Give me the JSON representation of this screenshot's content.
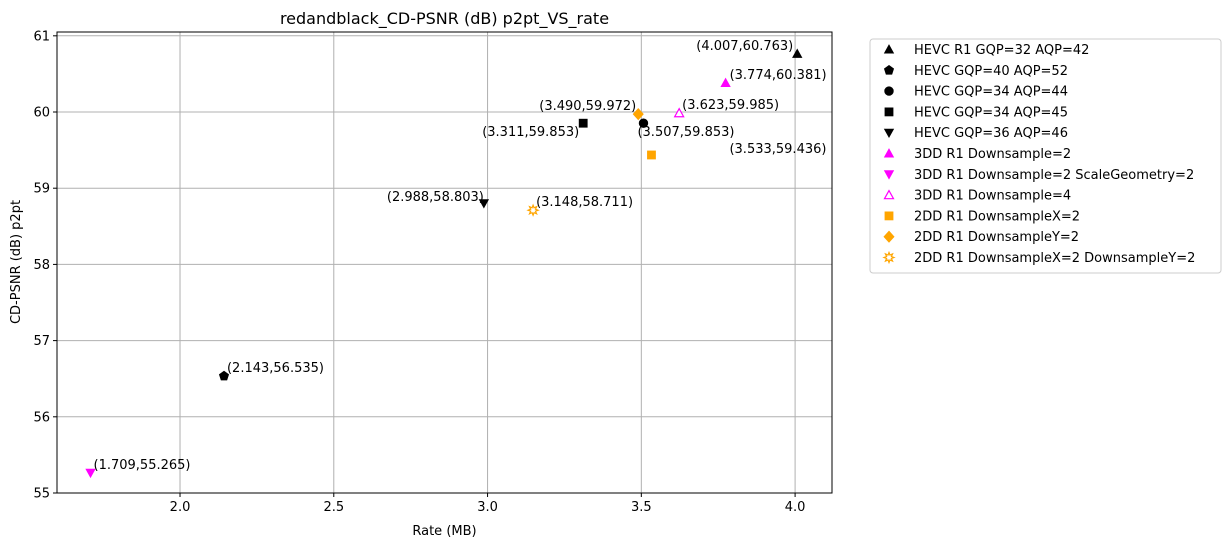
{
  "chart_data": {
    "type": "scatter",
    "title": "redandblack_CD-PSNR (dB) p2pt_VS_rate",
    "xlabel": "Rate (MB)",
    "ylabel": "CD-PSNR (dB) p2pt",
    "xlim": [
      1.6,
      4.12
    ],
    "ylim": [
      55.0,
      61.05
    ],
    "xticks": [
      "2.0",
      "2.5",
      "3.0",
      "3.5",
      "4.0"
    ],
    "yticks": [
      "55",
      "56",
      "57",
      "58",
      "59",
      "60",
      "61"
    ],
    "grid": true,
    "legend_position": "outside-right",
    "series": [
      {
        "name": "HEVC R1 GQP=32 AQP=42",
        "marker": "triangle-up",
        "color": "#000000",
        "filled": true,
        "points": [
          {
            "x": 4.007,
            "y": 60.763,
            "label": "(4.007,60.763)"
          }
        ]
      },
      {
        "name": "HEVC GQP=40 AQP=52",
        "marker": "pentagon",
        "color": "#000000",
        "filled": true,
        "points": [
          {
            "x": 2.143,
            "y": 56.535,
            "label": "(2.143,56.535)"
          }
        ]
      },
      {
        "name": "HEVC GQP=34 AQP=44",
        "marker": "circle",
        "color": "#000000",
        "filled": true,
        "points": [
          {
            "x": 3.507,
            "y": 59.853,
            "label": "(3.507,59.853)"
          }
        ]
      },
      {
        "name": "HEVC GQP=34 AQP=45",
        "marker": "square",
        "color": "#000000",
        "filled": true,
        "points": [
          {
            "x": 3.311,
            "y": 59.853,
            "label": "(3.311,59.853)"
          }
        ]
      },
      {
        "name": "HEVC GQP=36 AQP=46",
        "marker": "triangle-down",
        "color": "#000000",
        "filled": true,
        "points": [
          {
            "x": 2.988,
            "y": 58.803,
            "label": "(2.988,58.803)"
          }
        ]
      },
      {
        "name": "3DD R1 Downsample=2",
        "marker": "triangle-up",
        "color": "#ff00ff",
        "filled": true,
        "points": [
          {
            "x": 3.774,
            "y": 60.381,
            "label": "(3.774,60.381)"
          }
        ]
      },
      {
        "name": "3DD R1 Downsample=2 ScaleGeometry=2",
        "marker": "triangle-down",
        "color": "#ff00ff",
        "filled": true,
        "points": [
          {
            "x": 1.709,
            "y": 55.265,
            "label": "(1.709,55.265)"
          }
        ]
      },
      {
        "name": "3DD R1 Downsample=4",
        "marker": "triangle-up",
        "color": "#ff00ff",
        "filled": false,
        "points": [
          {
            "x": 3.623,
            "y": 59.985,
            "label": "(3.623,59.985)"
          }
        ]
      },
      {
        "name": "2DD R1 DownsampleX=2",
        "marker": "square",
        "color": "#ffa500",
        "filled": true,
        "points": [
          {
            "x": 3.533,
            "y": 59.436,
            "label": "(3.533,59.436)"
          }
        ]
      },
      {
        "name": "2DD R1 DownsampleY=2",
        "marker": "diamond",
        "color": "#ffa500",
        "filled": true,
        "points": [
          {
            "x": 3.49,
            "y": 59.972,
            "label": "(3.490,59.972)"
          }
        ]
      },
      {
        "name": "2DD R1 DownsampleX=2 DownsampleY=2",
        "marker": "sun",
        "color": "#ffa500",
        "filled": false,
        "points": [
          {
            "x": 3.148,
            "y": 58.711,
            "label": "(3.148,58.711)"
          }
        ]
      }
    ]
  }
}
